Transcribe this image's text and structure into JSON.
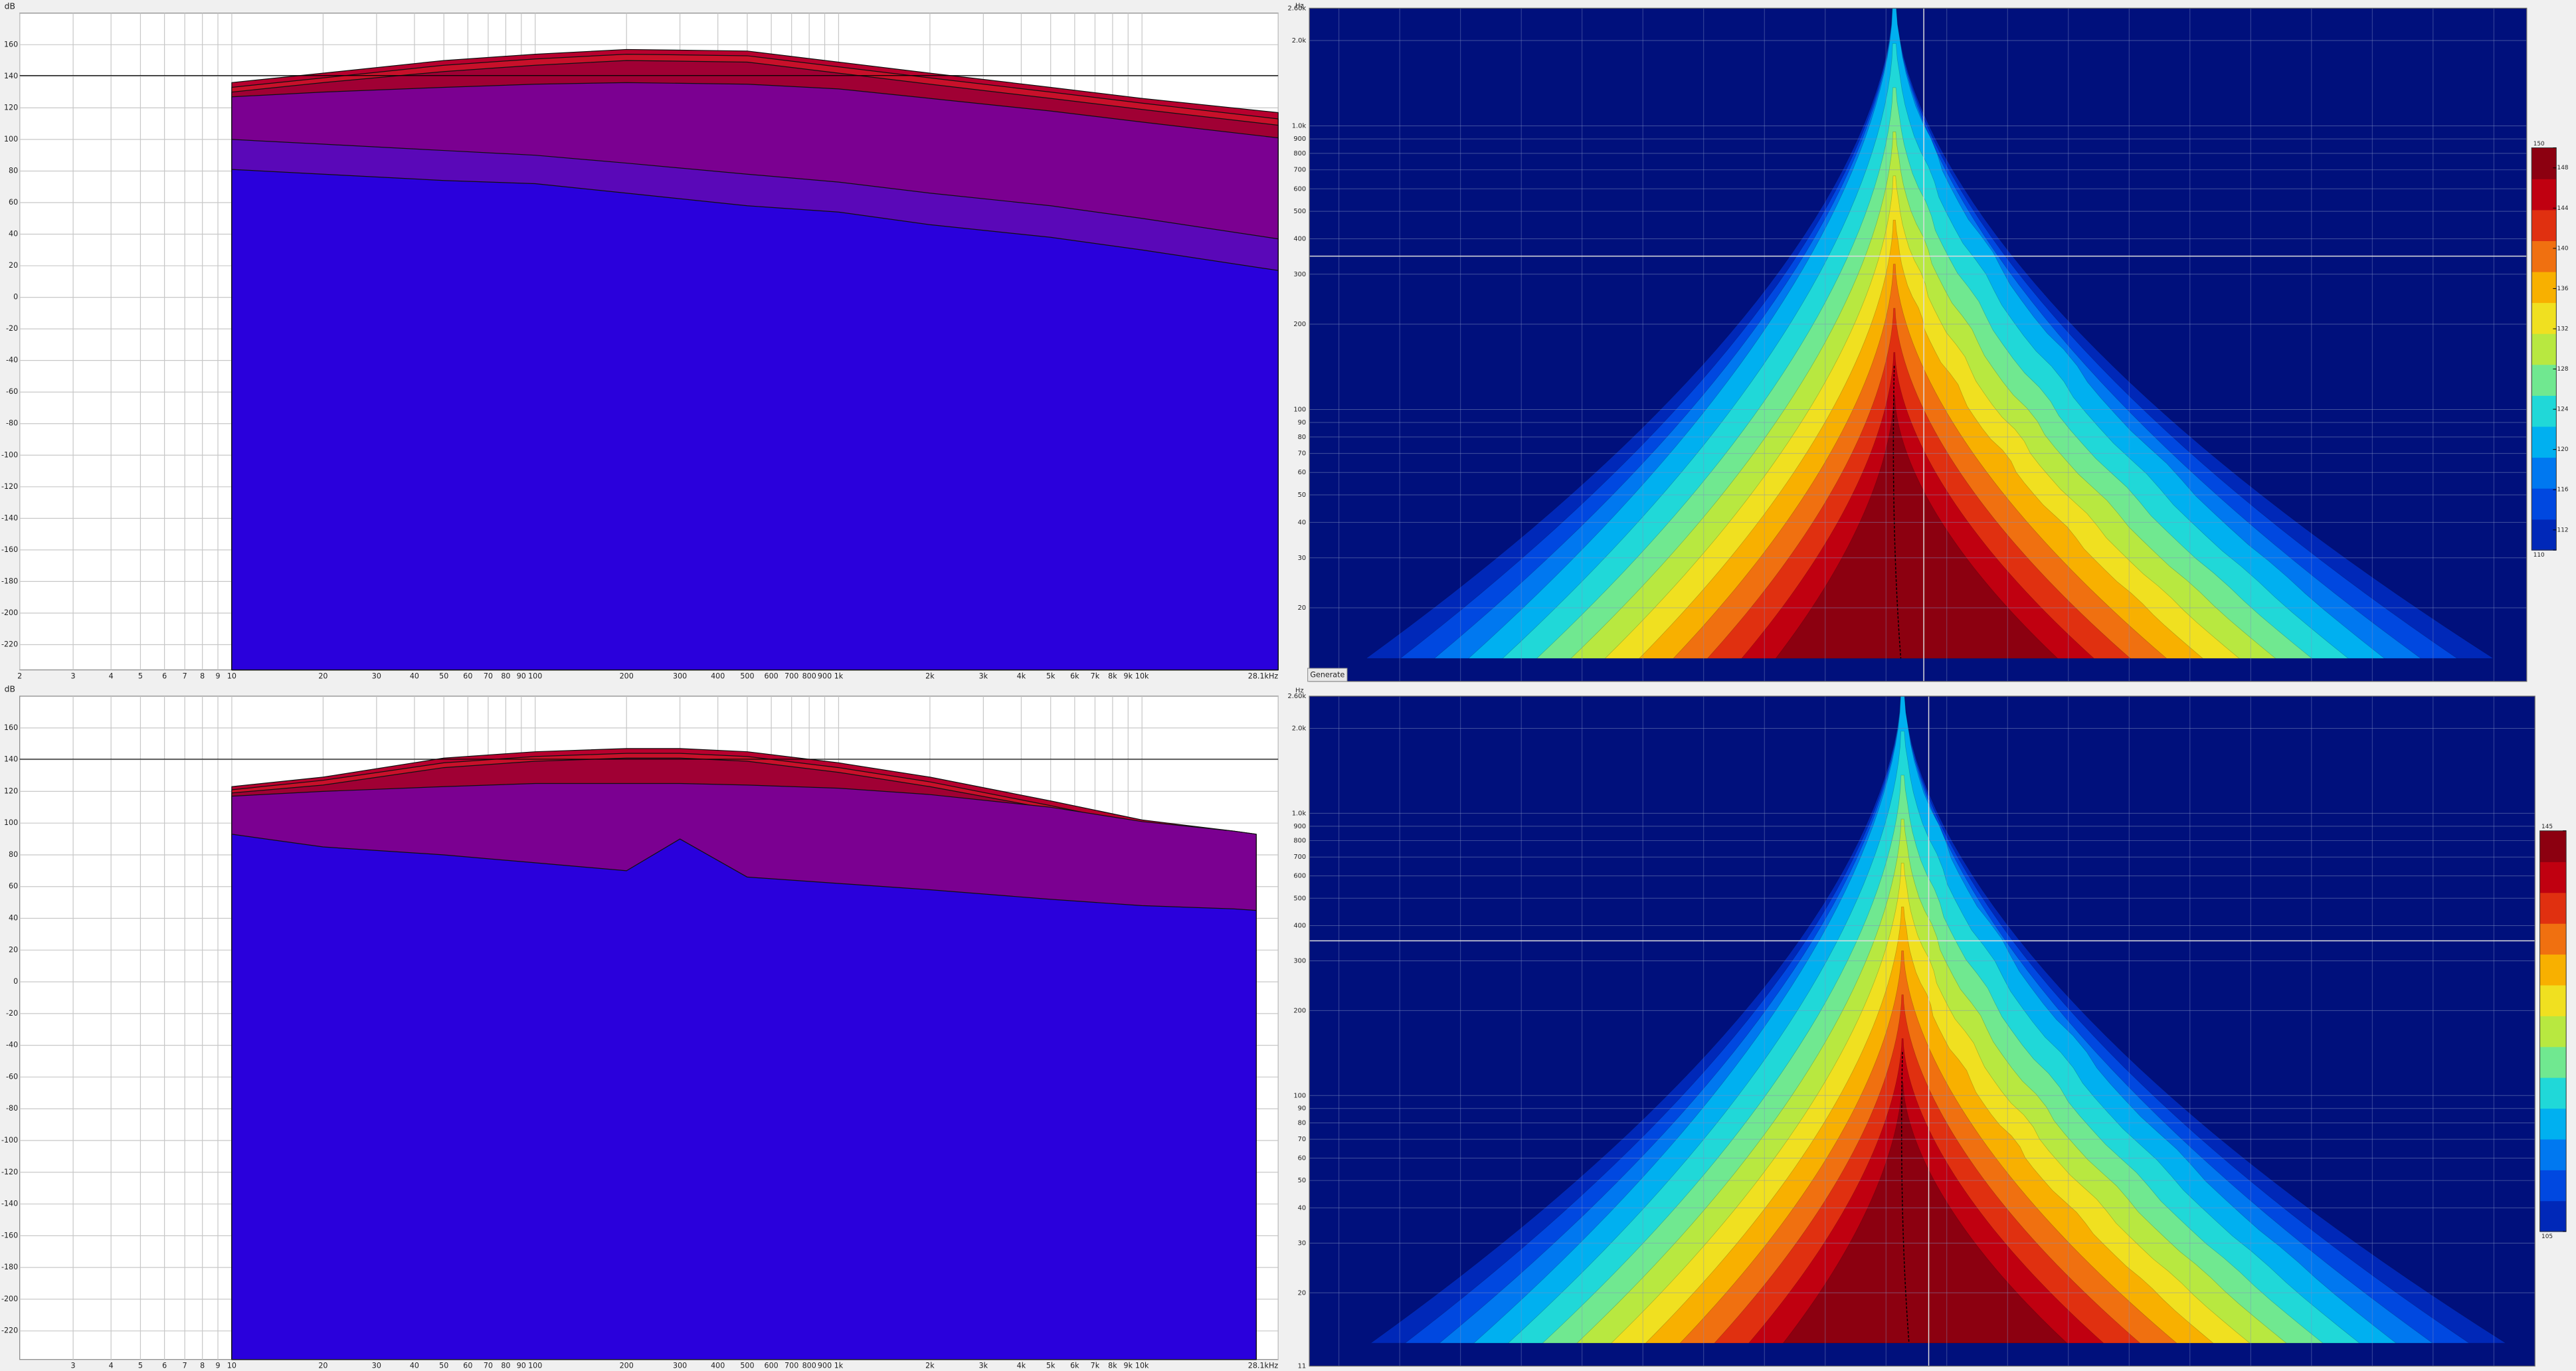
{
  "chart_data": [
    {
      "type": "area",
      "ylabel": "dB",
      "xlog": true,
      "xlim": [
        2,
        28100
      ],
      "ylim": [
        -236,
        180
      ],
      "grid": true,
      "xticks": [
        2,
        3,
        4,
        5,
        6,
        7,
        8,
        9,
        10,
        20,
        30,
        40,
        50,
        60,
        70,
        80,
        90,
        100,
        200,
        300,
        400,
        500,
        600,
        700,
        800,
        900,
        {
          "value": 1000,
          "label": "1k"
        },
        {
          "value": 2000,
          "label": "2k"
        },
        {
          "value": 3000,
          "label": "3k"
        },
        {
          "value": 4000,
          "label": "4k"
        },
        {
          "value": 5000,
          "label": "5k"
        },
        {
          "value": 6000,
          "label": "6k"
        },
        {
          "value": 7000,
          "label": "7k"
        },
        {
          "value": 8000,
          "label": "8k"
        },
        {
          "value": 9000,
          "label": "9k"
        },
        {
          "value": 10000,
          "label": "10k"
        },
        {
          "value": 28100,
          "label": "28.1kHz"
        }
      ],
      "yticks": [
        160,
        140,
        120,
        100,
        80,
        60,
        40,
        20,
        0,
        -20,
        -40,
        -60,
        -80,
        -100,
        -120,
        -140,
        -160,
        -180,
        -200,
        -220
      ],
      "x": [
        10,
        20,
        50,
        100,
        200,
        500,
        1000,
        2000,
        5000,
        10000,
        28100
      ],
      "series": [
        {
          "color": "#b8002e",
          "values": [
            136,
            142,
            150,
            154,
            157,
            156,
            149,
            142,
            133,
            126,
            117
          ]
        },
        {
          "color": "#c8102a",
          "values": [
            133,
            139,
            147,
            151,
            154,
            153,
            146,
            139,
            130,
            123,
            113
          ]
        },
        {
          "color": "#a00034",
          "values": [
            130,
            136,
            143,
            147,
            150,
            149,
            142,
            135,
            126,
            119,
            109
          ]
        },
        {
          "color": "#7b0091",
          "values": [
            127,
            130,
            133,
            135,
            136,
            135,
            132,
            126,
            118,
            111,
            101
          ]
        },
        {
          "color": "#5a08b8",
          "values": [
            100,
            97,
            93,
            90,
            85,
            78,
            73,
            66,
            58,
            50,
            37
          ]
        },
        {
          "color": "#2a00dc",
          "values": [
            81,
            78,
            74,
            72,
            66,
            58,
            54,
            46,
            38,
            30,
            17
          ]
        }
      ]
    },
    {
      "type": "spectrogram",
      "ylabel": "Hz",
      "ylog": true,
      "ylim": [
        11,
        2600
      ],
      "grid": true,
      "yticks": [
        {
          "value": 2600,
          "label": "2.60k"
        },
        {
          "value": 2000,
          "label": "2.0k"
        },
        {
          "value": 1000,
          "label": "1.0k"
        },
        900,
        800,
        700,
        600,
        500,
        400,
        300,
        200,
        100,
        90,
        80,
        70,
        60,
        50,
        40,
        30,
        20
      ],
      "zlim": [
        110,
        150
      ],
      "zticks": [
        150,
        148,
        144,
        140,
        136,
        132,
        128,
        124,
        120,
        116,
        112,
        110
      ],
      "colors": [
        "#00107c",
        "#0028b8",
        "#0048e0",
        "#0078f0",
        "#00b0f0",
        "#20d8d8",
        "#70e890",
        "#b8e840",
        "#f0e020",
        "#f8b000",
        "#f07010",
        "#e03010",
        "#c00010",
        "#8c0010"
      ]
    },
    {
      "type": "area",
      "ylabel": "dB",
      "xlog": true,
      "xlim": [
        2,
        28100
      ],
      "ylim": [
        -238,
        180
      ],
      "grid": true,
      "xticks": [
        3,
        4,
        5,
        6,
        7,
        8,
        9,
        10,
        20,
        30,
        40,
        50,
        60,
        70,
        80,
        90,
        100,
        200,
        300,
        400,
        500,
        600,
        700,
        800,
        900,
        {
          "value": 1000,
          "label": "1k"
        },
        {
          "value": 2000,
          "label": "2k"
        },
        {
          "value": 3000,
          "label": "3k"
        },
        {
          "value": 4000,
          "label": "4k"
        },
        {
          "value": 5000,
          "label": "5k"
        },
        {
          "value": 6000,
          "label": "6k"
        },
        {
          "value": 7000,
          "label": "7k"
        },
        {
          "value": 8000,
          "label": "8k"
        },
        {
          "value": 9000,
          "label": "9k"
        },
        {
          "value": 10000,
          "label": "10k"
        },
        {
          "value": 28100,
          "label": "28.1kHz"
        }
      ],
      "yticks": [
        160,
        140,
        120,
        100,
        80,
        60,
        40,
        20,
        0,
        -20,
        -40,
        -60,
        -80,
        -100,
        -120,
        -140,
        -160,
        -180,
        -200,
        -220
      ],
      "x": [
        10,
        20,
        50,
        100,
        200,
        300,
        500,
        1000,
        2000,
        5000,
        10000,
        20000,
        23800
      ],
      "series": [
        {
          "color": "#b8002e",
          "values": [
            123,
            129,
            141,
            145,
            147,
            147,
            145,
            138,
            129,
            114,
            102,
            95,
            93
          ]
        },
        {
          "color": "#c8102a",
          "values": [
            121,
            127,
            138,
            142,
            144,
            144,
            142,
            135,
            126,
            111,
            99,
            93,
            91
          ]
        },
        {
          "color": "#a00034",
          "values": [
            119,
            124,
            135,
            139,
            141,
            141,
            139,
            132,
            123,
            109,
            97,
            92,
            90
          ]
        },
        {
          "color": "#7b0091",
          "values": [
            117,
            120,
            123,
            125,
            125,
            125,
            124,
            122,
            118,
            110,
            101,
            95,
            93
          ]
        },
        {
          "color": "#2a00dc",
          "values": [
            93,
            85,
            80,
            75,
            70,
            90,
            66,
            62,
            58,
            52,
            48,
            46,
            45
          ]
        }
      ]
    },
    {
      "type": "spectrogram",
      "ylabel": "Hz",
      "ylog": true,
      "ylim": [
        11,
        2600
      ],
      "grid": true,
      "yticks": [
        {
          "value": 2600,
          "label": "2.60k"
        },
        {
          "value": 2000,
          "label": "2.0k"
        },
        {
          "value": 1000,
          "label": "1.0k"
        },
        900,
        800,
        700,
        600,
        500,
        400,
        300,
        200,
        100,
        90,
        80,
        70,
        60,
        50,
        40,
        30,
        20,
        11
      ],
      "zlim": [
        105,
        145
      ],
      "zticks": [
        145,
        105
      ],
      "colors": [
        "#00107c",
        "#0028b8",
        "#0048e0",
        "#0078f0",
        "#00b0f0",
        "#20d8d8",
        "#70e890",
        "#b8e840",
        "#f0e020",
        "#f8b000",
        "#f07010",
        "#e03010",
        "#c00010",
        "#8c0010"
      ]
    }
  ],
  "ui": {
    "generate_button": "Generate"
  }
}
